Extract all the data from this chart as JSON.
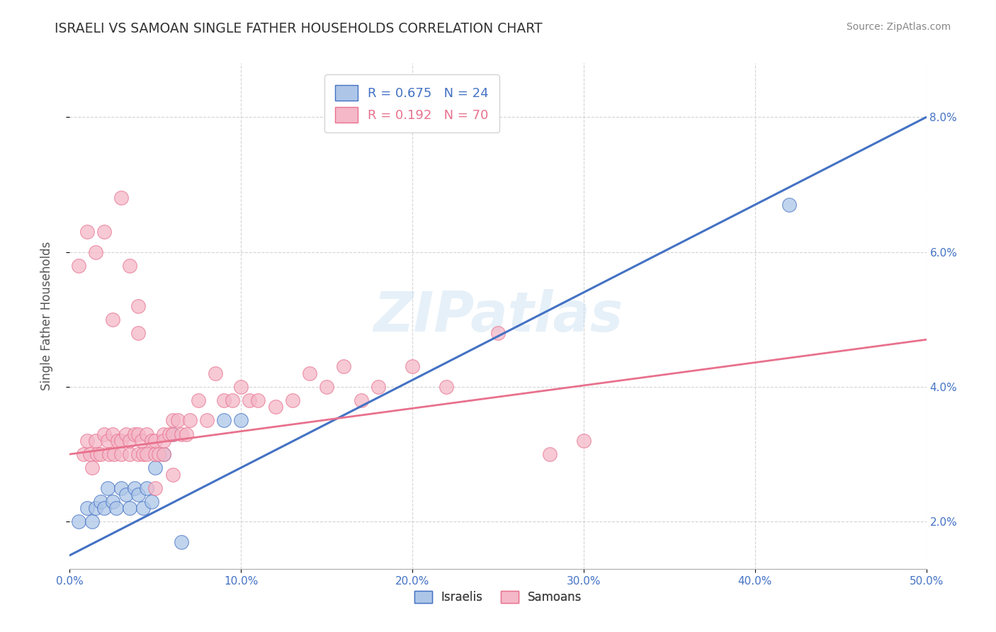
{
  "title": "ISRAELI VS SAMOAN SINGLE FATHER HOUSEHOLDS CORRELATION CHART",
  "source": "Source: ZipAtlas.com",
  "xlim": [
    0.0,
    0.5
  ],
  "ylim": [
    0.013,
    0.088
  ],
  "legend_r_blue": "R = 0.675",
  "legend_n_blue": "N = 24",
  "legend_r_pink": "R = 0.192",
  "legend_n_pink": "N = 70",
  "blue_color": "#4472c4",
  "pink_color": "#e8718d",
  "blue_dot_face": "#adc6e8",
  "pink_dot_face": "#f4b8c8",
  "watermark": "ZIPatlas",
  "blue_scatter_x": [
    0.005,
    0.01,
    0.013,
    0.015,
    0.018,
    0.02,
    0.022,
    0.025,
    0.027,
    0.03,
    0.033,
    0.035,
    0.038,
    0.04,
    0.043,
    0.045,
    0.048,
    0.05,
    0.055,
    0.06,
    0.065,
    0.42,
    0.09,
    0.1
  ],
  "blue_scatter_y": [
    0.02,
    0.022,
    0.02,
    0.022,
    0.023,
    0.022,
    0.025,
    0.023,
    0.022,
    0.025,
    0.024,
    0.022,
    0.025,
    0.024,
    0.022,
    0.025,
    0.023,
    0.028,
    0.03,
    0.033,
    0.017,
    0.067,
    0.035,
    0.035
  ],
  "pink_scatter_x": [
    0.005,
    0.008,
    0.01,
    0.012,
    0.013,
    0.015,
    0.016,
    0.018,
    0.02,
    0.022,
    0.023,
    0.025,
    0.026,
    0.028,
    0.03,
    0.03,
    0.033,
    0.035,
    0.035,
    0.038,
    0.04,
    0.04,
    0.042,
    0.043,
    0.045,
    0.045,
    0.048,
    0.05,
    0.05,
    0.052,
    0.055,
    0.055,
    0.055,
    0.058,
    0.06,
    0.06,
    0.063,
    0.065,
    0.068,
    0.07,
    0.075,
    0.08,
    0.085,
    0.09,
    0.095,
    0.1,
    0.105,
    0.11,
    0.12,
    0.13,
    0.14,
    0.15,
    0.16,
    0.17,
    0.18,
    0.2,
    0.22,
    0.25,
    0.28,
    0.3,
    0.01,
    0.015,
    0.02,
    0.025,
    0.03,
    0.035,
    0.04,
    0.04,
    0.05,
    0.06
  ],
  "pink_scatter_y": [
    0.058,
    0.03,
    0.032,
    0.03,
    0.028,
    0.032,
    0.03,
    0.03,
    0.033,
    0.032,
    0.03,
    0.033,
    0.03,
    0.032,
    0.032,
    0.03,
    0.033,
    0.03,
    0.032,
    0.033,
    0.033,
    0.03,
    0.032,
    0.03,
    0.033,
    0.03,
    0.032,
    0.03,
    0.032,
    0.03,
    0.033,
    0.03,
    0.032,
    0.033,
    0.035,
    0.033,
    0.035,
    0.033,
    0.033,
    0.035,
    0.038,
    0.035,
    0.042,
    0.038,
    0.038,
    0.04,
    0.038,
    0.038,
    0.037,
    0.038,
    0.042,
    0.04,
    0.043,
    0.038,
    0.04,
    0.043,
    0.04,
    0.048,
    0.03,
    0.032,
    0.063,
    0.06,
    0.063,
    0.05,
    0.068,
    0.058,
    0.052,
    0.048,
    0.025,
    0.027
  ],
  "blue_line_x": [
    0.0,
    0.5
  ],
  "blue_line_y": [
    0.015,
    0.08
  ],
  "pink_line_x": [
    0.0,
    0.5
  ],
  "pink_line_y": [
    0.03,
    0.047
  ],
  "grid_color": "#d0d0d0",
  "background_color": "#ffffff",
  "tick_color": "#4472c4"
}
